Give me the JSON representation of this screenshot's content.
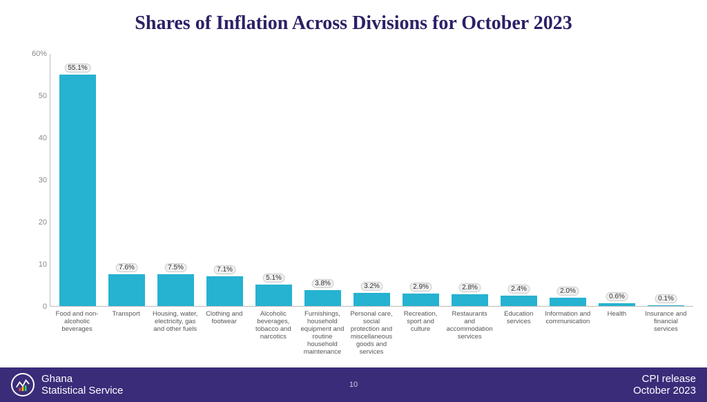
{
  "title": {
    "text": "Shares of Inflation Across Divisions for October 2023",
    "color": "#2a2166",
    "fontsize": 28
  },
  "chart": {
    "type": "bar",
    "bar_color": "#26b2d1",
    "background_color": "#ffffff",
    "axis_color": "#bbbbbb",
    "label_fontsize": 10,
    "xlabel_fontsize": 9.5,
    "ytick_fontsize": 11,
    "ylim_min": 0,
    "ylim_max": 60,
    "ytick_step": 10,
    "yticks": [
      "0",
      "10",
      "20",
      "30",
      "40",
      "50",
      "60%"
    ],
    "bar_width": 0.74,
    "categories": [
      "Food and non-alcoholic beverages",
      "Transport",
      "Housing, water, electricity, gas and other fuels",
      "Clothing and footwear",
      "Alcoholic beverages, tobacco and narcotics",
      "Furnishings, household equipment and routine household maintenance",
      "Personal care, social protection and miscellaneous goods and services",
      "Recreation, sport and culture",
      "Restaurants and accommodation services",
      "Education services",
      "Information and communication",
      "Health",
      "Insurance and financial services"
    ],
    "values": [
      55.1,
      7.6,
      7.5,
      7.1,
      5.1,
      3.8,
      3.2,
      2.9,
      2.8,
      2.4,
      2.0,
      0.6,
      0.1
    ],
    "value_labels": [
      "55.1%",
      "7.6%",
      "7.5%",
      "7.1%",
      "5.1%",
      "3.8%",
      "3.2%",
      "2.9%",
      "2.8%",
      "2.4%",
      "2.0%",
      "0.6%",
      "0.1%"
    ]
  },
  "footer": {
    "background_color": "#3b2c7a",
    "org_line1": "Ghana",
    "org_line2": "Statistical Service",
    "page_number": "10",
    "right_line1": "CPI release",
    "right_line2": "October  2023"
  }
}
